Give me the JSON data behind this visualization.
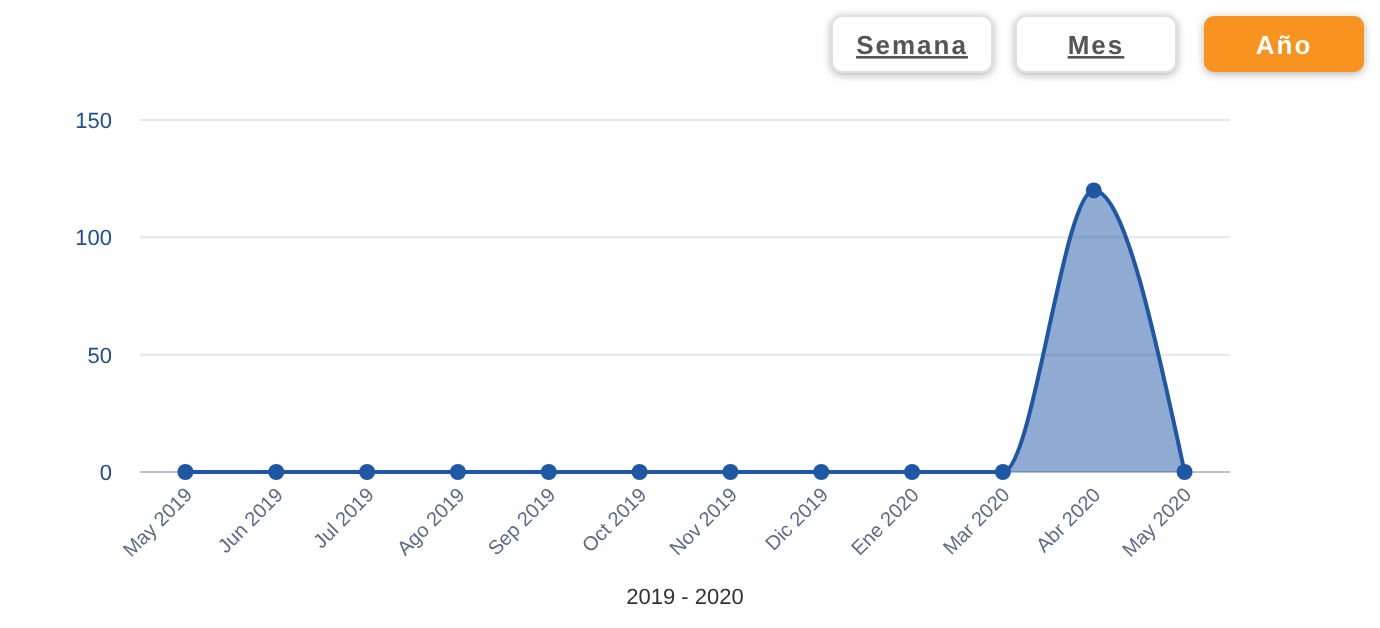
{
  "chart_data": {
    "type": "area",
    "xlabel": "2019 - 2020",
    "categories": [
      "May 2019",
      "Jun 2019",
      "Jul 2019",
      "Ago 2019",
      "Sep 2019",
      "Oct 2019",
      "Nov 2019",
      "Dic 2019",
      "Ene 2020",
      "Mar 2020",
      "Abr 2020",
      "May 2020"
    ],
    "series": [
      {
        "color": "#1f57a4",
        "values": [
          0,
          0,
          0,
          0,
          0,
          0,
          0,
          0,
          0,
          0,
          120,
          0
        ]
      }
    ],
    "ylim": [
      0,
      150
    ],
    "yticks": [
      0,
      50,
      100,
      150
    ],
    "grid": "y",
    "marker": "circle",
    "line_style": "solid",
    "annotations": [
      "Semana",
      "Mes",
      "Año"
    ]
  }
}
